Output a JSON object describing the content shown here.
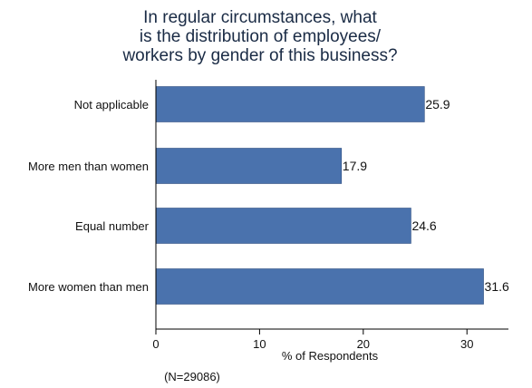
{
  "chart_data": {
    "type": "bar",
    "orientation": "horizontal",
    "title": [
      "In regular circumstances, what",
      "is the distribution of employees/",
      "workers by gender of this business?"
    ],
    "categories": [
      "Not applicable",
      "More men than women",
      "Equal number",
      "More women than men"
    ],
    "values": [
      25.9,
      17.9,
      24.6,
      31.6
    ],
    "value_labels": [
      "25.9",
      "17.9",
      "24.6",
      "31.6"
    ],
    "xlabel": "% of Respondents",
    "ylabel": "",
    "xlim": [
      0,
      34
    ],
    "xticks": [
      0,
      10,
      20,
      30
    ],
    "xtick_labels": [
      "0",
      "10",
      "20",
      "30"
    ],
    "note": "(N=29086)",
    "bar_color": "#4a72ad",
    "grid": false,
    "legend": "none"
  }
}
